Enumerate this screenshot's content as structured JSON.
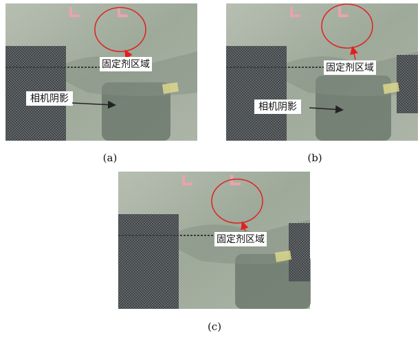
{
  "panels": [
    {
      "caption": "(a)",
      "region_label": "固定剂区域",
      "shadow_label": "相机阴影"
    },
    {
      "caption": "(b)",
      "region_label": "固定剂区域",
      "shadow_label": "相机阴影"
    },
    {
      "caption": "(c)",
      "region_label": "固定剂区域"
    }
  ]
}
